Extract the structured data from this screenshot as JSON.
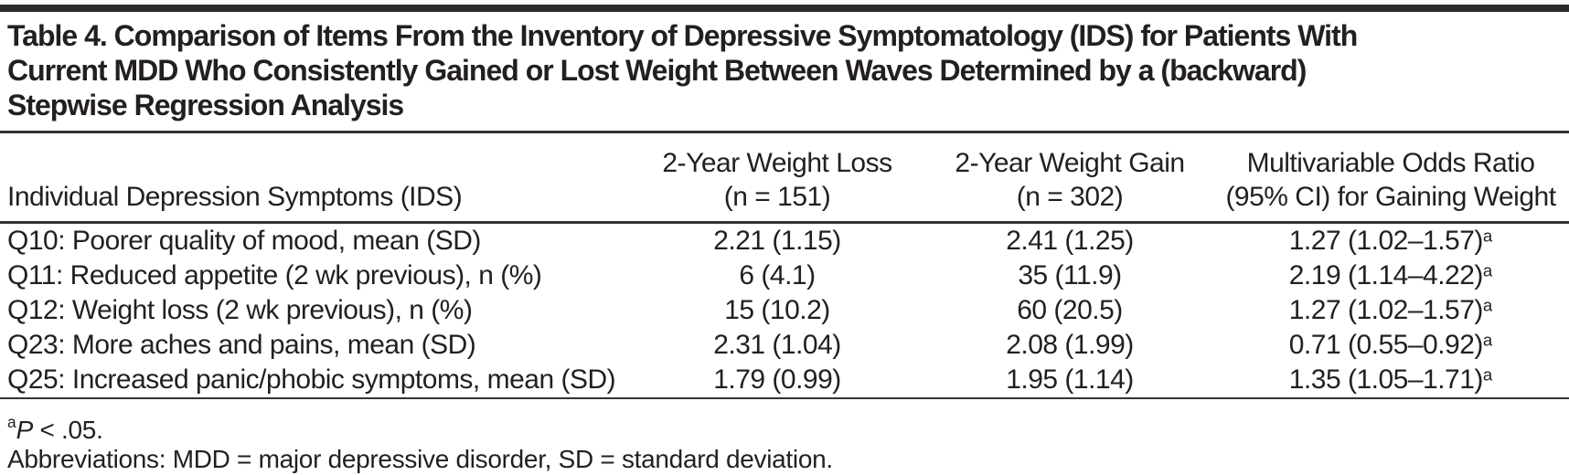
{
  "title": {
    "lines": [
      "Table 4. Comparison of Items From the Inventory of Depressive Symptomatology (IDS) for Patients With",
      "Current MDD Who Consistently Gained or Lost Weight Between Waves Determined by a (backward)",
      "Stepwise Regression Analysis"
    ]
  },
  "table": {
    "headers": {
      "col1": "Individual Depression Symptoms (IDS)",
      "col2": "2-Year Weight Loss\n(n = 151)",
      "col3": "2-Year Weight Gain\n(n = 302)",
      "col4": "Multivariable Odds Ratio\n(95% CI) for Gaining Weight"
    },
    "rows": [
      {
        "symptom": "Q10: Poorer quality of mood, mean (SD)",
        "weight_loss": "2.21 (1.15)",
        "weight_gain": "2.41 (1.25)",
        "odds_ratio": "1.27 (1.02–1.57)",
        "odds_ratio_marker": "a"
      },
      {
        "symptom": "Q11: Reduced appetite (2 wk previous), n (%)",
        "weight_loss": "6 (4.1)",
        "weight_gain": "35 (11.9)",
        "odds_ratio": "2.19 (1.14–4.22)",
        "odds_ratio_marker": "a"
      },
      {
        "symptom": "Q12: Weight loss (2 wk previous), n (%)",
        "weight_loss": "15 (10.2)",
        "weight_gain": "60 (20.5)",
        "odds_ratio": "1.27 (1.02–1.57)",
        "odds_ratio_marker": "a"
      },
      {
        "symptom": "Q23: More aches and pains, mean (SD)",
        "weight_loss": "2.31 (1.04)",
        "weight_gain": "2.08 (1.99)",
        "odds_ratio": "0.71 (0.55–0.92)",
        "odds_ratio_marker": "a"
      },
      {
        "symptom": "Q25: Increased panic/phobic symptoms, mean (SD)",
        "weight_loss": "1.79 (0.99)",
        "weight_gain": "1.95 (1.14)",
        "odds_ratio": "1.35 (1.05–1.71)",
        "odds_ratio_marker": "a"
      }
    ]
  },
  "footnotes": {
    "p_marker": "a",
    "p_label": "P",
    "p_rest": " < .05.",
    "abbreviations": "Abbreviations: MDD = major depressive disorder, SD = standard deviation."
  },
  "colors": {
    "text": "#231f20",
    "top_bar": "#2d2a2b",
    "rule": "#363233",
    "background": "#ffffff"
  }
}
